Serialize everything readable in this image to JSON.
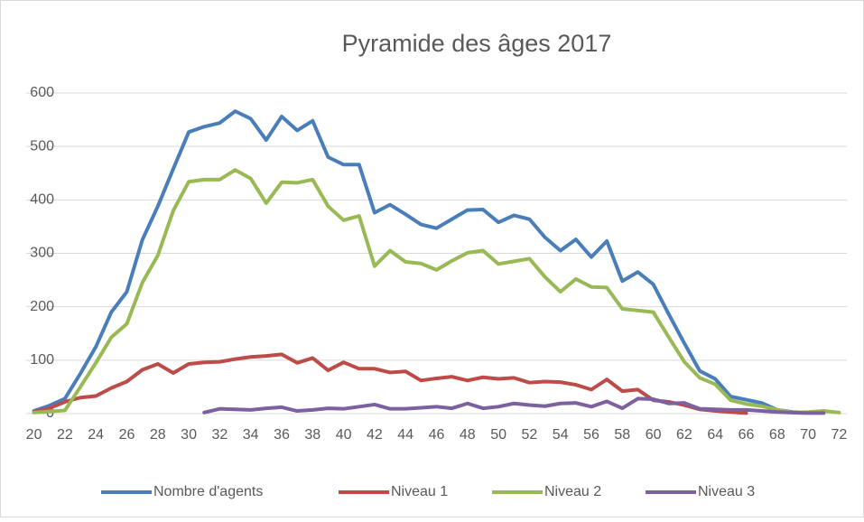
{
  "chart_data": {
    "type": "line",
    "title": "Pyramide des âges 2017",
    "x": [
      20,
      21,
      22,
      23,
      24,
      25,
      26,
      27,
      28,
      29,
      30,
      31,
      32,
      33,
      34,
      35,
      36,
      37,
      38,
      39,
      40,
      41,
      42,
      43,
      44,
      45,
      46,
      47,
      48,
      49,
      50,
      51,
      52,
      53,
      54,
      55,
      56,
      57,
      58,
      59,
      60,
      61,
      62,
      63,
      64,
      65,
      66,
      67,
      68,
      69,
      70,
      71,
      72
    ],
    "xlim": [
      19.5,
      72.5
    ],
    "xticks": [
      20,
      22,
      24,
      26,
      28,
      30,
      32,
      34,
      36,
      38,
      40,
      42,
      44,
      46,
      48,
      50,
      52,
      54,
      56,
      58,
      60,
      62,
      64,
      66,
      68,
      70,
      72
    ],
    "ylim": [
      0,
      600
    ],
    "yticks": [
      0,
      100,
      200,
      300,
      400,
      500,
      600
    ],
    "grid": true,
    "legend": "bottom",
    "series": [
      {
        "name": "Nombre d'agents",
        "color": "#4a7ebb",
        "values": [
          5,
          15,
          28,
          75,
          125,
          190,
          228,
          325,
          388,
          458,
          527,
          537,
          544,
          566,
          552,
          512,
          556,
          530,
          548,
          480,
          466,
          466,
          376,
          391,
          373,
          354,
          347,
          364,
          381,
          382,
          358,
          371,
          364,
          330,
          305,
          326,
          293,
          323,
          248,
          265,
          242,
          186,
          132,
          80,
          65,
          32,
          26,
          20,
          7,
          3,
          2,
          2,
          null
        ]
      },
      {
        "name": "Niveau 1",
        "color": "#be4b48",
        "values": [
          3,
          10,
          22,
          30,
          33,
          48,
          60,
          82,
          93,
          76,
          93,
          96,
          97,
          102,
          106,
          108,
          111,
          95,
          104,
          81,
          96,
          84,
          84,
          77,
          79,
          62,
          66,
          69,
          62,
          68,
          65,
          67,
          58,
          60,
          59,
          54,
          45,
          64,
          42,
          45,
          25,
          22,
          16,
          8,
          5,
          3,
          1,
          null,
          null,
          null,
          null,
          null,
          null
        ]
      },
      {
        "name": "Niveau 2",
        "color": "#98b954",
        "values": [
          2,
          4,
          6,
          50,
          95,
          143,
          168,
          245,
          296,
          380,
          434,
          438,
          438,
          456,
          440,
          394,
          433,
          432,
          438,
          388,
          362,
          370,
          276,
          305,
          284,
          281,
          269,
          286,
          301,
          305,
          280,
          285,
          290,
          256,
          228,
          252,
          237,
          236,
          196,
          193,
          190,
          143,
          97,
          67,
          55,
          25,
          18,
          14,
          7,
          2,
          3,
          5,
          2
        ]
      },
      {
        "name": "Niveau 3",
        "color": "#7d60a0",
        "values": [
          null,
          null,
          null,
          null,
          null,
          null,
          null,
          null,
          null,
          null,
          null,
          2,
          9,
          8,
          7,
          10,
          12,
          5,
          7,
          10,
          9,
          13,
          17,
          9,
          9,
          11,
          13,
          10,
          19,
          10,
          13,
          19,
          16,
          14,
          19,
          20,
          13,
          23,
          10,
          28,
          27,
          19,
          20,
          9,
          8,
          7,
          7,
          5,
          3,
          2,
          1,
          1,
          null
        ]
      }
    ]
  }
}
